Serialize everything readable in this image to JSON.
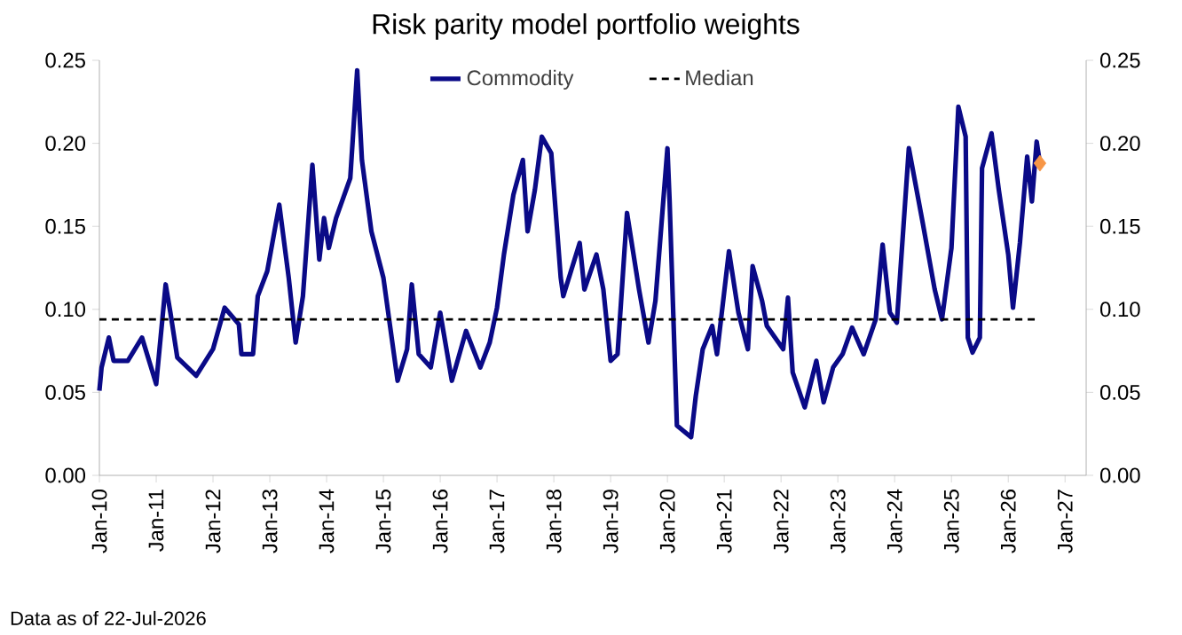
{
  "chart_data": {
    "type": "line",
    "title": "Risk parity model portfolio weights",
    "x": [
      "2010-01-01",
      "2010-01-15",
      "2010-03-01",
      "2010-04-01",
      "2010-07-01",
      "2010-10-01",
      "2011-01-01",
      "2011-03-01",
      "2011-04-01",
      "2011-05-15",
      "2011-09-15",
      "2012-01-01",
      "2012-03-15",
      "2012-06-15",
      "2012-07-01",
      "2012-09-15",
      "2012-10-15",
      "2012-12-15",
      "2013-03-01",
      "2013-05-01",
      "2013-06-15",
      "2013-08-01",
      "2013-10-01",
      "2013-11-15",
      "2013-12-15",
      "2014-01-15",
      "2014-03-01",
      "2014-06-01",
      "2014-07-15",
      "2014-08-15",
      "2014-10-15",
      "2015-01-01",
      "2015-04-01",
      "2015-06-01",
      "2015-07-01",
      "2015-08-15",
      "2015-11-01",
      "2016-01-01",
      "2016-03-15",
      "2016-06-15",
      "2016-09-15",
      "2016-11-15",
      "2017-01-01",
      "2017-02-15",
      "2017-04-15",
      "2017-06-15",
      "2017-07-15",
      "2017-09-01",
      "2017-10-15",
      "2017-12-15",
      "2018-02-15",
      "2018-03-01",
      "2018-06-15",
      "2018-07-15",
      "2018-10-01",
      "2018-11-15",
      "2019-01-01",
      "2019-02-15",
      "2019-04-15",
      "2019-07-01",
      "2019-09-01",
      "2019-10-15",
      "2020-01-01",
      "2020-01-15",
      "2020-03-01",
      "2020-06-01",
      "2020-07-01",
      "2020-08-15",
      "2020-10-15",
      "2020-11-15",
      "2021-02-01",
      "2021-04-01",
      "2021-06-01",
      "2021-07-01",
      "2021-09-01",
      "2021-10-01",
      "2022-01-15",
      "2022-02-15",
      "2022-03-15",
      "2022-06-01",
      "2022-08-15",
      "2022-10-01",
      "2022-12-01",
      "2023-02-01",
      "2023-04-01",
      "2023-06-15",
      "2023-09-01",
      "2023-10-15",
      "2023-12-01",
      "2024-01-15",
      "2024-04-01",
      "2024-07-01",
      "2024-09-15",
      "2024-11-01",
      "2025-01-01",
      "2025-02-15",
      "2025-04-01",
      "2025-04-15",
      "2025-05-15",
      "2025-07-01",
      "2025-07-15",
      "2025-09-15",
      "2025-11-01",
      "2026-01-01",
      "2026-02-01",
      "2026-03-15",
      "2026-05-01",
      "2026-06-01",
      "2026-07-01",
      "2026-07-22"
    ],
    "series": [
      {
        "name": "Commodity",
        "color": "#0a0a87",
        "line_style": "solid",
        "values": [
          0.051,
          0.065,
          0.083,
          0.069,
          0.069,
          0.083,
          0.055,
          0.115,
          0.098,
          0.071,
          0.06,
          0.076,
          0.101,
          0.091,
          0.073,
          0.073,
          0.108,
          0.123,
          0.163,
          0.119,
          0.08,
          0.108,
          0.187,
          0.13,
          0.155,
          0.137,
          0.155,
          0.179,
          0.244,
          0.19,
          0.147,
          0.119,
          0.057,
          0.076,
          0.115,
          0.073,
          0.065,
          0.098,
          0.057,
          0.087,
          0.065,
          0.08,
          0.101,
          0.133,
          0.169,
          0.19,
          0.147,
          0.172,
          0.204,
          0.194,
          0.119,
          0.108,
          0.14,
          0.112,
          0.133,
          0.112,
          0.069,
          0.073,
          0.158,
          0.112,
          0.08,
          0.105,
          0.197,
          0.165,
          0.03,
          0.023,
          0.048,
          0.076,
          0.09,
          0.073,
          0.135,
          0.098,
          0.076,
          0.126,
          0.105,
          0.09,
          0.076,
          0.107,
          0.062,
          0.041,
          0.069,
          0.044,
          0.065,
          0.073,
          0.089,
          0.073,
          0.094,
          0.139,
          0.098,
          0.092,
          0.197,
          0.151,
          0.112,
          0.094,
          0.137,
          0.222,
          0.204,
          0.083,
          0.074,
          0.083,
          0.185,
          0.206,
          0.172,
          0.133,
          0.101,
          0.14,
          0.192,
          0.165,
          0.201,
          0.188
        ]
      },
      {
        "type": "scatter",
        "marker": "diamond",
        "color": "#f79646",
        "x": [
          "2026-07-22"
        ],
        "values": [
          0.188
        ]
      }
    ],
    "ref_lines": [
      {
        "axis": "y",
        "value": 0.094,
        "label": "Median",
        "color": "#000000",
        "line_style": "dashed"
      }
    ],
    "xlim": [
      "2010-01-01",
      "2027-05-15"
    ],
    "xticks": [
      {
        "value": "2010-01-01",
        "label": "Jan-10"
      },
      {
        "value": "2011-01-01",
        "label": "Jan-11"
      },
      {
        "value": "2012-01-01",
        "label": "Jan-12"
      },
      {
        "value": "2013-01-01",
        "label": "Jan-13"
      },
      {
        "value": "2014-01-01",
        "label": "Jan-14"
      },
      {
        "value": "2015-01-01",
        "label": "Jan-15"
      },
      {
        "value": "2016-01-01",
        "label": "Jan-16"
      },
      {
        "value": "2017-01-01",
        "label": "Jan-17"
      },
      {
        "value": "2018-01-01",
        "label": "Jan-18"
      },
      {
        "value": "2019-01-01",
        "label": "Jan-19"
      },
      {
        "value": "2020-01-01",
        "label": "Jan-20"
      },
      {
        "value": "2021-01-01",
        "label": "Jan-21"
      },
      {
        "value": "2022-01-01",
        "label": "Jan-22"
      },
      {
        "value": "2023-01-01",
        "label": "Jan-23"
      },
      {
        "value": "2024-01-01",
        "label": "Jan-24"
      },
      {
        "value": "2025-01-01",
        "label": "Jan-25"
      },
      {
        "value": "2026-01-01",
        "label": "Jan-26"
      },
      {
        "value": "2027-01-01",
        "label": "Jan-27"
      }
    ],
    "ylim": [
      0,
      0.25
    ],
    "yticks": [
      {
        "value": 0,
        "label": "0.00"
      },
      {
        "value": 0.05,
        "label": "0.05"
      },
      {
        "value": 0.1,
        "label": "0.10"
      },
      {
        "value": 0.15,
        "label": "0.15"
      },
      {
        "value": 0.2,
        "label": "0.20"
      },
      {
        "value": 0.25,
        "label": "0.25"
      }
    ],
    "y2lim": [
      0,
      0.25
    ],
    "y2ticks": [
      {
        "value": 0,
        "label": "0.00"
      },
      {
        "value": 0.05,
        "label": "0.05"
      },
      {
        "value": 0.1,
        "label": "0.10"
      },
      {
        "value": 0.15,
        "label": "0.15"
      },
      {
        "value": 0.2,
        "label": "0.20"
      },
      {
        "value": 0.25,
        "label": "0.25"
      }
    ],
    "grid": false,
    "legend": "top",
    "annotations": [
      "Data as of 22-Jul-2026"
    ]
  }
}
